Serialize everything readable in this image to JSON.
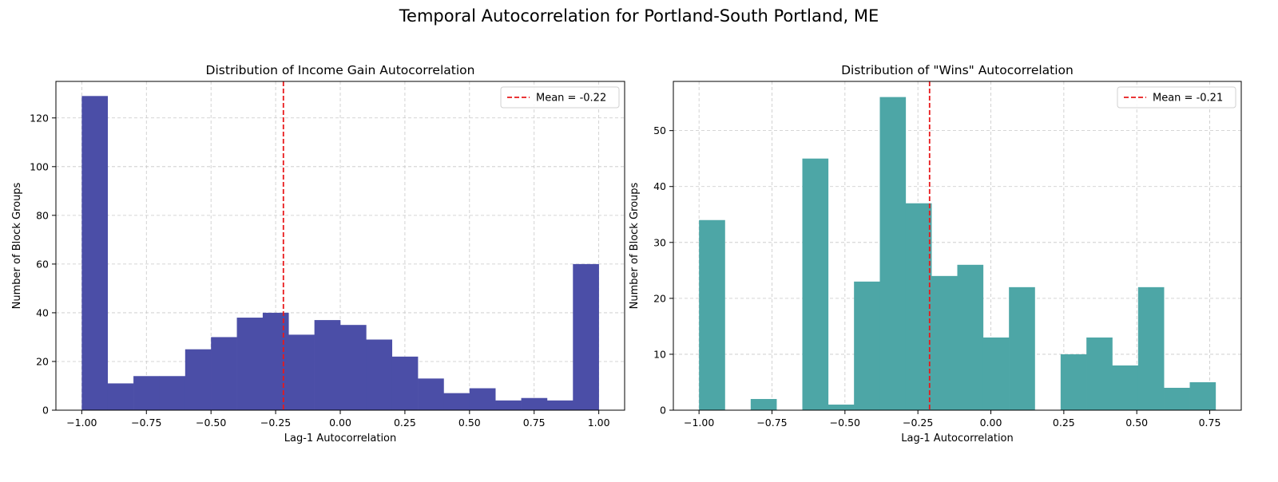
{
  "figure": {
    "suptitle": "Temporal Autocorrelation for Portland-South Portland, ME"
  },
  "chart_data": [
    {
      "type": "bar",
      "title": "Distribution of Income Gain Autocorrelation",
      "xlabel": "Lag-1 Autocorrelation",
      "ylabel": "Number of Block Groups",
      "color": "#4b4ea7",
      "xlim": [
        -1.1,
        1.1
      ],
      "ylim": [
        0,
        135
      ],
      "xticks": [
        -1.0,
        -0.75,
        -0.5,
        -0.25,
        0.0,
        0.25,
        0.5,
        0.75,
        1.0
      ],
      "xtick_labels": [
        "−1.00",
        "−0.75",
        "−0.50",
        "−0.25",
        "0.00",
        "0.25",
        "0.50",
        "0.75",
        "1.00"
      ],
      "yticks": [
        0,
        20,
        40,
        60,
        80,
        100,
        120
      ],
      "ytick_labels": [
        "0",
        "20",
        "40",
        "60",
        "80",
        "100",
        "120"
      ],
      "bin_start": -1.0,
      "bin_width": 0.1,
      "values": [
        129,
        11,
        14,
        14,
        25,
        30,
        38,
        40,
        31,
        37,
        35,
        29,
        22,
        13,
        7,
        9,
        4,
        5,
        4,
        60
      ],
      "mean": -0.22,
      "mean_color": "#e8191b",
      "legend_label": "Mean = -0.22",
      "legend_loc": "upper right",
      "grid": true
    },
    {
      "type": "bar",
      "title": "Distribution of \"Wins\" Autocorrelation",
      "xlabel": "Lag-1 Autocorrelation",
      "ylabel": "Number of Block Groups",
      "color": "#4da6a6",
      "xlim": [
        -1.088,
        0.858
      ],
      "ylim": [
        0,
        58.8
      ],
      "xticks": [
        -1.0,
        -0.75,
        -0.5,
        -0.25,
        0.0,
        0.25,
        0.5,
        0.75
      ],
      "xtick_labels": [
        "−1.00",
        "−0.75",
        "−0.50",
        "−0.25",
        "0.00",
        "0.25",
        "0.50",
        "0.75"
      ],
      "yticks": [
        0,
        10,
        20,
        30,
        40,
        50
      ],
      "ytick_labels": [
        "0",
        "10",
        "20",
        "30",
        "40",
        "50"
      ],
      "bin_start": -1.0,
      "bin_width": 0.0885,
      "values": [
        34,
        0,
        2,
        0,
        45,
        1,
        23,
        56,
        37,
        24,
        26,
        13,
        22,
        0,
        10,
        13,
        8,
        22,
        4,
        5
      ],
      "mean": -0.21,
      "mean_color": "#e8191b",
      "legend_label": "Mean = -0.21",
      "legend_loc": "upper right",
      "grid": true
    }
  ]
}
